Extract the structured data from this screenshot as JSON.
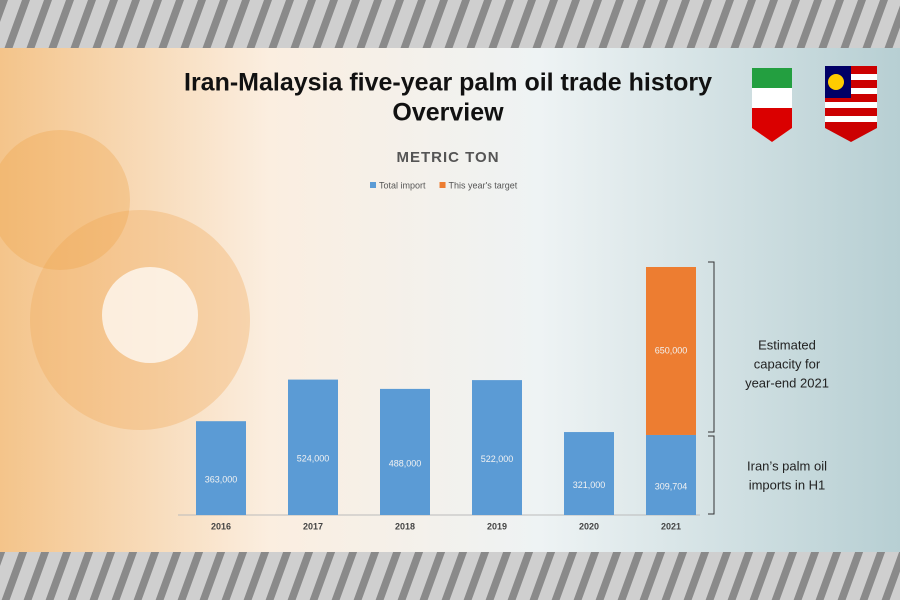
{
  "chart_data": {
    "type": "stacked-bar",
    "title": [
      "Iran-Malaysia five-year palm oil trade history",
      "Overview"
    ],
    "subtitle": "METRIC TON",
    "categories": [
      "2016",
      "2017",
      "2018",
      "2019",
      "2020",
      "2021"
    ],
    "series": [
      {
        "name": "Total import",
        "color": "#5b9bd5",
        "values": [
          363000,
          524000,
          488000,
          522000,
          321000,
          309704
        ],
        "value_labels": [
          "363,000",
          "524,000",
          "488,000",
          "522,000",
          "321,000",
          "309,704"
        ]
      },
      {
        "name": "This year's target",
        "color": "#ed7d31",
        "values": [
          null,
          null,
          null,
          null,
          null,
          650000
        ],
        "value_labels": [
          null,
          null,
          null,
          null,
          null,
          "650,000"
        ]
      }
    ],
    "annotations": [
      [
        "Estimated",
        "capacity for",
        "year-end 2021"
      ],
      [
        "Iran’s palm oil",
        "imports in H1"
      ]
    ]
  }
}
